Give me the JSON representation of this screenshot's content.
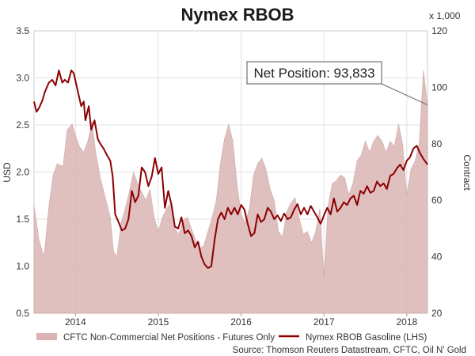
{
  "chart_data": {
    "type": "line",
    "title": "Nymex RBOB",
    "ylabel": "USD",
    "y2label": "Contract",
    "y2multiplier": "x 1,000",
    "xlim": [
      2013.5,
      2018.25
    ],
    "ylim": [
      0.5,
      3.5
    ],
    "y2lim": [
      20,
      120
    ],
    "x_ticks": [
      2014,
      2015,
      2016,
      2017,
      2018
    ],
    "x_tick_labels": [
      "2014",
      "2015",
      "2016",
      "2017",
      "2018"
    ],
    "y_ticks": [
      0.5,
      1.0,
      1.5,
      2.0,
      2.5,
      3.0,
      3.5
    ],
    "y_tick_labels": [
      "0.5",
      "1.0",
      "1.5",
      "2.0",
      "2.5",
      "3.0",
      "3.5"
    ],
    "y2_ticks": [
      20,
      40,
      60,
      80,
      100,
      120
    ],
    "y2_tick_labels": [
      "20",
      "40",
      "60",
      "80",
      "100",
      "120"
    ],
    "grid": true,
    "legend_position": "bottom",
    "series": [
      {
        "name": "CFTC Non-Commercial Net Positions - Futures Only",
        "kind": "area",
        "axis": "right",
        "color": "#dab4b4",
        "x": [
          2013.5,
          2013.56,
          2013.62,
          2013.68,
          2013.73,
          2013.78,
          2013.85,
          2013.9,
          2013.96,
          2014.0,
          2014.05,
          2014.1,
          2014.15,
          2014.2,
          2014.24,
          2014.3,
          2014.36,
          2014.42,
          2014.46,
          2014.5,
          2014.55,
          2014.6,
          2014.65,
          2014.7,
          2014.75,
          2014.8,
          2014.85,
          2014.9,
          2014.95,
          2015.0,
          2015.05,
          2015.1,
          2015.15,
          2015.2,
          2015.25,
          2015.3,
          2015.35,
          2015.4,
          2015.45,
          2015.5,
          2015.55,
          2015.6,
          2015.65,
          2015.7,
          2015.75,
          2015.8,
          2015.85,
          2015.9,
          2015.95,
          2016.0,
          2016.05,
          2016.1,
          2016.15,
          2016.2,
          2016.25,
          2016.3,
          2016.35,
          2016.4,
          2016.45,
          2016.5,
          2016.55,
          2016.6,
          2016.65,
          2016.7,
          2016.75,
          2016.8,
          2016.85,
          2016.9,
          2016.95,
          2017.0,
          2017.05,
          2017.1,
          2017.15,
          2017.2,
          2017.25,
          2017.3,
          2017.35,
          2017.4,
          2017.45,
          2017.5,
          2017.55,
          2017.6,
          2017.65,
          2017.7,
          2017.75,
          2017.8,
          2017.85,
          2017.9,
          2017.95,
          2018.0,
          2018.05,
          2018.1,
          2018.15,
          2018.2,
          2018.25
        ],
        "values": [
          58,
          46,
          40,
          58,
          69,
          73,
          72,
          85,
          87,
          83,
          79,
          77,
          81,
          88,
          78,
          68,
          61,
          54,
          42,
          40,
          52,
          57,
          63,
          70,
          66,
          63,
          60,
          64,
          54,
          49,
          54,
          57,
          59,
          50,
          48,
          53,
          54,
          50,
          46,
          43,
          44,
          49,
          54,
          60,
          73,
          82,
          87,
          81,
          66,
          55,
          52,
          57,
          69,
          73,
          75,
          71,
          64,
          60,
          49,
          47,
          56,
          59,
          61,
          54,
          48,
          49,
          45,
          49,
          57,
          33,
          58,
          66,
          67,
          69,
          68,
          62,
          66,
          74,
          76,
          81,
          77,
          81,
          83,
          81,
          77,
          81,
          79,
          87,
          80,
          62,
          71,
          74,
          80,
          106,
          93.8
        ]
      },
      {
        "name": "Nymex RBOB Gasoline (LHS)",
        "kind": "line",
        "axis": "left",
        "color": "#8b0000",
        "x": [
          2013.5,
          2013.53,
          2013.56,
          2013.6,
          2013.63,
          2013.68,
          2013.72,
          2013.76,
          2013.8,
          2013.84,
          2013.87,
          2013.91,
          2013.95,
          2013.98,
          2014.03,
          2014.07,
          2014.1,
          2014.12,
          2014.16,
          2014.19,
          2014.23,
          2014.27,
          2014.3,
          2014.34,
          2014.38,
          2014.42,
          2014.45,
          2014.48,
          2014.52,
          2014.56,
          2014.6,
          2014.64,
          2014.68,
          2014.72,
          2014.76,
          2014.8,
          2014.84,
          2014.88,
          2014.92,
          2014.96,
          2015.0,
          2015.04,
          2015.08,
          2015.12,
          2015.16,
          2015.2,
          2015.24,
          2015.28,
          2015.32,
          2015.36,
          2015.4,
          2015.44,
          2015.48,
          2015.52,
          2015.56,
          2015.6,
          2015.64,
          2015.68,
          2015.72,
          2015.76,
          2015.8,
          2015.84,
          2015.88,
          2015.92,
          2015.96,
          2016.0,
          2016.04,
          2016.08,
          2016.12,
          2016.16,
          2016.2,
          2016.24,
          2016.28,
          2016.32,
          2016.36,
          2016.4,
          2016.44,
          2016.48,
          2016.52,
          2016.56,
          2016.6,
          2016.64,
          2016.68,
          2016.72,
          2016.76,
          2016.8,
          2016.84,
          2016.88,
          2016.92,
          2016.96,
          2017.0,
          2017.04,
          2017.08,
          2017.12,
          2017.16,
          2017.2,
          2017.24,
          2017.28,
          2017.32,
          2017.36,
          2017.4,
          2017.44,
          2017.48,
          2017.52,
          2017.56,
          2017.6,
          2017.64,
          2017.68,
          2017.72,
          2017.76,
          2017.8,
          2017.84,
          2017.88,
          2017.92,
          2017.96,
          2018.0,
          2018.04,
          2018.08,
          2018.12,
          2018.16,
          2018.2,
          2018.25
        ],
        "values": [
          2.75,
          2.64,
          2.68,
          2.76,
          2.85,
          2.95,
          2.98,
          2.92,
          3.08,
          2.95,
          2.98,
          2.95,
          3.08,
          3.05,
          2.85,
          2.7,
          2.75,
          2.55,
          2.7,
          2.45,
          2.55,
          2.35,
          2.3,
          2.25,
          2.18,
          2.12,
          1.95,
          1.55,
          1.47,
          1.38,
          1.4,
          1.5,
          1.8,
          1.68,
          1.75,
          2.05,
          2.0,
          1.85,
          1.95,
          2.15,
          1.98,
          2.05,
          1.62,
          1.8,
          1.65,
          1.42,
          1.4,
          1.52,
          1.35,
          1.38,
          1.32,
          1.2,
          1.26,
          1.1,
          1.02,
          0.98,
          1.0,
          1.28,
          1.5,
          1.57,
          1.5,
          1.62,
          1.55,
          1.62,
          1.55,
          1.65,
          1.6,
          1.45,
          1.32,
          1.35,
          1.55,
          1.47,
          1.5,
          1.62,
          1.58,
          1.5,
          1.54,
          1.48,
          1.56,
          1.5,
          1.52,
          1.6,
          1.66,
          1.55,
          1.62,
          1.55,
          1.64,
          1.58,
          1.52,
          1.45,
          1.54,
          1.62,
          1.55,
          1.72,
          1.58,
          1.62,
          1.68,
          1.65,
          1.72,
          1.75,
          1.65,
          1.8,
          1.77,
          1.85,
          1.78,
          1.8,
          1.9,
          1.85,
          1.88,
          1.82,
          1.96,
          1.98,
          2.04,
          2.08,
          2.02,
          2.12,
          2.16,
          2.25,
          2.28,
          2.2,
          2.14,
          2.08
        ]
      }
    ],
    "annotation": {
      "label": "Net Position: 93,833",
      "target_x": 2018.25,
      "target_y2": 93.8
    },
    "source": "Source: Thomson Reuters Datastream, CFTC, Oil N' Gold"
  }
}
